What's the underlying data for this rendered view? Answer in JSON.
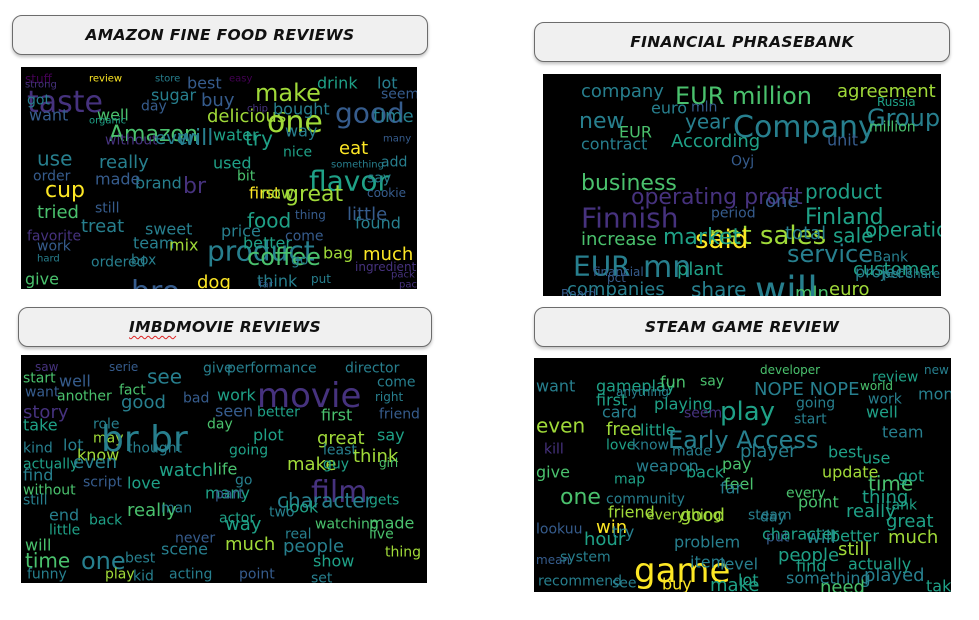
{
  "panels": {
    "amazon": {
      "title": "AMAZON FINE FOOD REVIEWS"
    },
    "financial": {
      "title": "FINANCIAL PHRASEBANK"
    },
    "imdb": {
      "title_prefix": "IMBD",
      "title_rest": " MOVIE REVIEWS"
    },
    "steam": {
      "title": "STEAM GAME REVIEW"
    }
  },
  "palette": [
    "#440154",
    "#46327e",
    "#365c8d",
    "#277f8e",
    "#1fa187",
    "#4ac16d",
    "#a0da39",
    "#fde725"
  ],
  "clouds": {
    "amazon": [
      [
        "stuff",
        12,
        0
      ],
      [
        "strong",
        10,
        1
      ],
      [
        "review",
        10,
        7
      ],
      [
        "store",
        10,
        3
      ],
      [
        "best",
        16,
        2
      ],
      [
        "easy",
        10,
        0
      ],
      [
        "lot",
        16,
        3
      ],
      [
        "taste",
        30,
        1
      ],
      [
        "make",
        24,
        6
      ],
      [
        "drink",
        16,
        4
      ],
      [
        "seem",
        14,
        2
      ],
      [
        "got",
        14,
        3
      ],
      [
        "sugar",
        16,
        3
      ],
      [
        "buy",
        18,
        2
      ],
      [
        "one",
        30,
        6
      ],
      [
        "good",
        28,
        2
      ],
      [
        "time",
        18,
        3
      ],
      [
        "want",
        16,
        2
      ],
      [
        "well",
        16,
        5
      ],
      [
        "day",
        14,
        2
      ],
      [
        "organic",
        10,
        4
      ],
      [
        "delicious",
        18,
        6
      ],
      [
        "chip",
        10,
        1
      ],
      [
        "bought",
        16,
        3
      ],
      [
        "Amazon",
        22,
        5
      ],
      [
        "even",
        18,
        3
      ],
      [
        "will",
        22,
        3
      ],
      [
        "water",
        16,
        4
      ],
      [
        "try",
        20,
        4
      ],
      [
        "way",
        16,
        3
      ],
      [
        "eat",
        18,
        7
      ],
      [
        "many",
        10,
        2
      ],
      [
        "use",
        20,
        3
      ],
      [
        "really",
        18,
        3
      ],
      [
        "without",
        14,
        1
      ],
      [
        "used",
        16,
        4
      ],
      [
        "nice",
        14,
        4
      ],
      [
        "flavor",
        28,
        4
      ],
      [
        "add",
        14,
        3
      ],
      [
        "order",
        14,
        2
      ],
      [
        "brand",
        16,
        3
      ],
      [
        "something",
        10,
        3
      ],
      [
        "cup",
        22,
        7
      ],
      [
        "made",
        16,
        2
      ],
      [
        "bit",
        14,
        5
      ],
      [
        "say",
        14,
        3
      ],
      [
        "cookie",
        12,
        2
      ],
      [
        "tried",
        18,
        5
      ],
      [
        "still",
        14,
        2
      ],
      [
        "first",
        16,
        7
      ],
      [
        "now",
        16,
        6
      ],
      [
        "great",
        22,
        6
      ],
      [
        "little",
        18,
        2
      ],
      [
        "favorite",
        14,
        1
      ],
      [
        "treat",
        18,
        3
      ],
      [
        "sweet",
        16,
        3
      ],
      [
        "br",
        22,
        1
      ],
      [
        "food",
        20,
        4
      ],
      [
        "thing",
        12,
        2
      ],
      [
        "found",
        16,
        3
      ],
      [
        "work",
        14,
        2
      ],
      [
        "team",
        16,
        3
      ],
      [
        "mix",
        16,
        6
      ],
      [
        "product",
        28,
        3
      ],
      [
        "better",
        16,
        4
      ],
      [
        "come",
        14,
        2
      ],
      [
        "price",
        16,
        3
      ],
      [
        "hard",
        10,
        3
      ],
      [
        "ordered",
        14,
        3
      ],
      [
        "box",
        14,
        3
      ],
      [
        "coffee",
        24,
        5
      ],
      [
        "bag",
        16,
        6
      ],
      [
        "much",
        18,
        7
      ],
      [
        "give",
        16,
        5
      ],
      [
        "dog",
        18,
        7
      ],
      [
        "think",
        16,
        3
      ],
      [
        "go",
        14,
        3
      ],
      [
        "ingredient",
        12,
        1
      ],
      [
        "put",
        12,
        3
      ],
      [
        "pack",
        10,
        1
      ],
      [
        "far",
        10,
        2
      ],
      [
        "package",
        10,
        1
      ],
      [
        "bro",
        30,
        2
      ]
    ],
    "financial": [
      [
        "company",
        18,
        3
      ],
      [
        "EUR million",
        24,
        5
      ],
      [
        "agreement",
        18,
        6
      ],
      [
        "Group",
        24,
        3
      ],
      [
        "euro",
        16,
        3
      ],
      [
        "mln",
        14,
        2
      ],
      [
        "new",
        22,
        3
      ],
      [
        "year",
        20,
        3
      ],
      [
        "Company",
        30,
        3
      ],
      [
        "Russia",
        12,
        4
      ],
      [
        "million",
        14,
        5
      ],
      [
        "EUR",
        16,
        5
      ],
      [
        "According",
        18,
        4
      ],
      [
        "unit",
        16,
        2
      ],
      [
        "contract",
        16,
        3
      ],
      [
        "Oyj",
        14,
        2
      ],
      [
        "business",
        22,
        5
      ],
      [
        "operating profit",
        22,
        1
      ],
      [
        "product",
        20,
        4
      ],
      [
        "Finnish",
        28,
        1
      ],
      [
        "Finland",
        22,
        4
      ],
      [
        "net sales",
        26,
        6
      ],
      [
        "operation",
        20,
        4
      ],
      [
        "said",
        26,
        7
      ],
      [
        "service",
        24,
        3
      ],
      [
        "increase",
        18,
        5
      ],
      [
        "market",
        22,
        4
      ],
      [
        "sale",
        20,
        4
      ],
      [
        "total",
        18,
        3
      ],
      [
        "customer",
        18,
        4
      ],
      [
        "EUR",
        28,
        3
      ],
      [
        "mn",
        30,
        3
      ],
      [
        "will",
        38,
        3
      ],
      [
        "plant",
        18,
        4
      ],
      [
        "share",
        20,
        3
      ],
      [
        "mln",
        18,
        5
      ],
      [
        "euro",
        18,
        6
      ],
      [
        "project",
        16,
        3
      ],
      [
        "companies",
        18,
        3
      ],
      [
        "Board",
        12,
        2
      ],
      [
        "financial",
        12,
        2
      ],
      [
        "one",
        18,
        2
      ],
      [
        "pct",
        12,
        2
      ],
      [
        "Bank",
        14,
        3
      ],
      [
        "per share",
        12,
        3
      ],
      [
        "period",
        14,
        2
      ]
    ],
    "imdb": [
      [
        "saw",
        12,
        1
      ],
      [
        "serie",
        12,
        2
      ],
      [
        "give",
        14,
        3
      ],
      [
        "performance",
        14,
        3
      ],
      [
        "director",
        14,
        3
      ],
      [
        "start",
        14,
        5
      ],
      [
        "well",
        16,
        2
      ],
      [
        "see",
        20,
        3
      ],
      [
        "movie",
        34,
        1
      ],
      [
        "want",
        14,
        2
      ],
      [
        "fact",
        14,
        5
      ],
      [
        "come",
        14,
        3
      ],
      [
        "story",
        18,
        1
      ],
      [
        "another",
        14,
        5
      ],
      [
        "good",
        18,
        3
      ],
      [
        "bad",
        14,
        2
      ],
      [
        "work",
        16,
        4
      ],
      [
        "seen",
        16,
        2
      ],
      [
        "right",
        12,
        3
      ],
      [
        "take",
        16,
        4
      ],
      [
        "role",
        14,
        3
      ],
      [
        "day",
        14,
        5
      ],
      [
        "better",
        14,
        4
      ],
      [
        "first",
        16,
        5
      ],
      [
        "friend",
        14,
        2
      ],
      [
        "lot",
        16,
        3
      ],
      [
        "may",
        14,
        6
      ],
      [
        "br br",
        36,
        3
      ],
      [
        "plot",
        16,
        4
      ],
      [
        "great",
        18,
        6
      ],
      [
        "say",
        16,
        4
      ],
      [
        "know",
        16,
        6
      ],
      [
        "thought",
        14,
        3
      ],
      [
        "kind",
        14,
        3
      ],
      [
        "going",
        14,
        4
      ],
      [
        "least",
        14,
        3
      ],
      [
        "think",
        18,
        6
      ],
      [
        "actually",
        14,
        4
      ],
      [
        "even",
        18,
        3
      ],
      [
        "watch",
        18,
        4
      ],
      [
        "life",
        16,
        5
      ],
      [
        "make",
        18,
        6
      ],
      [
        "guy",
        14,
        4
      ],
      [
        "girl",
        12,
        5
      ],
      [
        "find",
        16,
        3
      ],
      [
        "script",
        14,
        2
      ],
      [
        "love",
        16,
        4
      ],
      [
        "go",
        14,
        3
      ],
      [
        "many",
        16,
        4
      ],
      [
        "film",
        30,
        1
      ],
      [
        "character",
        20,
        3
      ],
      [
        "without",
        14,
        5
      ],
      [
        "look",
        16,
        4
      ],
      [
        "gets",
        14,
        4
      ],
      [
        "really",
        18,
        5
      ],
      [
        "part",
        14,
        2
      ],
      [
        "two",
        14,
        3
      ],
      [
        "still",
        14,
        3
      ],
      [
        "end",
        16,
        3
      ],
      [
        "back",
        14,
        4
      ],
      [
        "man",
        14,
        3
      ],
      [
        "way",
        18,
        4
      ],
      [
        "watching",
        14,
        5
      ],
      [
        "made",
        16,
        5
      ],
      [
        "little",
        14,
        4
      ],
      [
        "scene",
        16,
        3
      ],
      [
        "actor",
        14,
        4
      ],
      [
        "real",
        14,
        3
      ],
      [
        "live",
        14,
        5
      ],
      [
        "will",
        16,
        5
      ],
      [
        "never",
        14,
        2
      ],
      [
        "much",
        18,
        6
      ],
      [
        "people",
        18,
        3
      ],
      [
        "thing",
        14,
        6
      ],
      [
        "one",
        24,
        3
      ],
      [
        "best",
        14,
        3
      ],
      [
        "show",
        16,
        4
      ],
      [
        "funny",
        14,
        3
      ],
      [
        "time",
        20,
        5
      ],
      [
        "play",
        14,
        6
      ],
      [
        "kid",
        14,
        3
      ],
      [
        "acting",
        14,
        3
      ],
      [
        "point",
        14,
        2
      ],
      [
        "set",
        14,
        3
      ]
    ],
    "steam": [
      [
        "developer",
        12,
        5
      ],
      [
        "new",
        12,
        3
      ],
      [
        "review",
        14,
        4
      ],
      [
        "want",
        16,
        3
      ],
      [
        "gameplay",
        16,
        4
      ],
      [
        "fun",
        16,
        5
      ],
      [
        "say",
        14,
        5
      ],
      [
        "NOPE NOPE",
        18,
        3
      ],
      [
        "world",
        12,
        5
      ],
      [
        "money",
        16,
        3
      ],
      [
        "first",
        16,
        4
      ],
      [
        "anything",
        12,
        3
      ],
      [
        "playing",
        16,
        4
      ],
      [
        "play",
        26,
        4
      ],
      [
        "going",
        14,
        3
      ],
      [
        "work",
        14,
        3
      ],
      [
        "card",
        16,
        3
      ],
      [
        "seem",
        14,
        1
      ],
      [
        "start",
        14,
        3
      ],
      [
        "well",
        16,
        4
      ],
      [
        "free",
        18,
        6
      ],
      [
        "little",
        16,
        4
      ],
      [
        "Early Access",
        24,
        3
      ],
      [
        "team",
        16,
        3
      ],
      [
        "even",
        20,
        6
      ],
      [
        "love",
        14,
        4
      ],
      [
        "know",
        14,
        3
      ],
      [
        "made",
        14,
        3
      ],
      [
        "player",
        18,
        3
      ],
      [
        "best",
        16,
        4
      ],
      [
        "kill",
        14,
        1
      ],
      [
        "weapon",
        16,
        3
      ],
      [
        "pay",
        16,
        5
      ],
      [
        "use",
        16,
        4
      ],
      [
        "give",
        16,
        5
      ],
      [
        "back",
        16,
        4
      ],
      [
        "feel",
        16,
        5
      ],
      [
        "update",
        16,
        6
      ],
      [
        "time",
        20,
        5
      ],
      [
        "got",
        16,
        4
      ],
      [
        "map",
        14,
        4
      ],
      [
        "one",
        22,
        5
      ],
      [
        "every",
        14,
        5
      ],
      [
        "community",
        14,
        3
      ],
      [
        "thing",
        18,
        4
      ],
      [
        "point",
        16,
        5
      ],
      [
        "really",
        18,
        4
      ],
      [
        "friend",
        16,
        6
      ],
      [
        "good",
        18,
        6
      ],
      [
        "everything",
        14,
        6
      ],
      [
        "win",
        18,
        7
      ],
      [
        "steam",
        14,
        3
      ],
      [
        "tank",
        14,
        4
      ],
      [
        "try",
        16,
        3
      ],
      [
        "put",
        14,
        2
      ],
      [
        "better",
        16,
        4
      ],
      [
        "great",
        18,
        4
      ],
      [
        "lookuu",
        14,
        2
      ],
      [
        "hour",
        18,
        4
      ],
      [
        "problem",
        16,
        3
      ],
      [
        "people",
        18,
        4
      ],
      [
        "will",
        18,
        3
      ],
      [
        "still",
        18,
        6
      ],
      [
        "much",
        18,
        6
      ],
      [
        "mean",
        12,
        2
      ],
      [
        "system",
        14,
        3
      ],
      [
        "game",
        34,
        7
      ],
      [
        "item",
        16,
        3
      ],
      [
        "level",
        16,
        3
      ],
      [
        "find",
        16,
        4
      ],
      [
        "actually",
        16,
        4
      ],
      [
        "played",
        18,
        3
      ],
      [
        "recommend",
        14,
        3
      ],
      [
        "see",
        14,
        3
      ],
      [
        "buy",
        16,
        7
      ],
      [
        "make",
        18,
        4
      ],
      [
        "lot",
        16,
        4
      ],
      [
        "something",
        16,
        3
      ],
      [
        "need",
        18,
        5
      ],
      [
        "take",
        16,
        4
      ],
      [
        "character",
        16,
        4
      ],
      [
        "day",
        14,
        3
      ],
      [
        "far",
        16,
        3
      ]
    ]
  }
}
